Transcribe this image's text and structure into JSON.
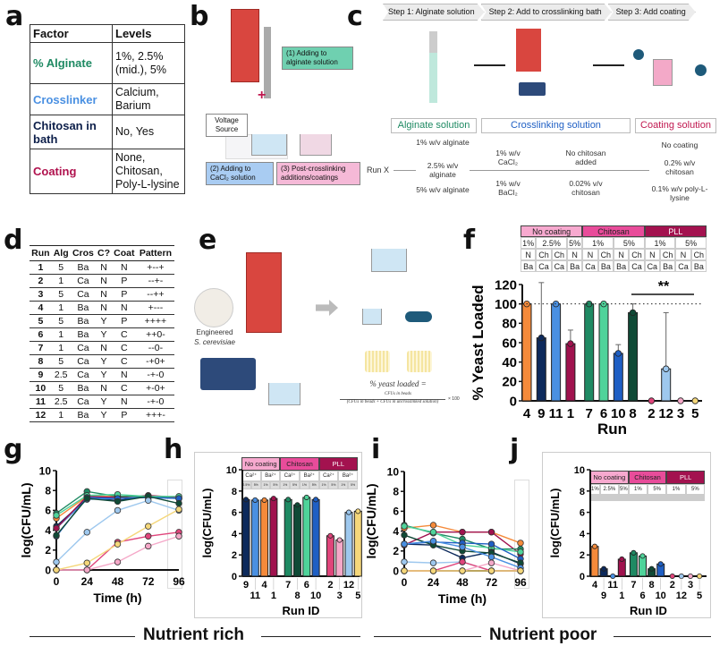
{
  "panel_labels": [
    "a",
    "b",
    "c",
    "d",
    "e",
    "f",
    "g",
    "h",
    "i",
    "j"
  ],
  "panel_a": {
    "header": [
      "Factor",
      "Levels"
    ],
    "rows": [
      {
        "factor": "% Alginate",
        "levels": "1%, 2.5% (mid.), 5%",
        "color": "#1f8a63"
      },
      {
        "factor": "Crosslinker",
        "levels": "Calcium, Barium",
        "color": "#4a90e2"
      },
      {
        "factor": "Chitosan in bath",
        "levels": "No, Yes",
        "color": "#0d1f4a"
      },
      {
        "factor": "Coating",
        "levels": "None, Chitosan, Poly-L-lysine",
        "color": "#b0124e"
      }
    ]
  },
  "panel_b": {
    "note1": "(1) Adding to alginate solution",
    "voltage": "Voltage Source",
    "note2": "(2) Adding to CaCl₂ solution",
    "note3": "(3) Post-crosslinking additions/coatings",
    "plus": "+",
    "minus": "-"
  },
  "panel_c": {
    "steps": [
      "Step 1: Alginate solution",
      "Step 2: Add to crosslinking bath",
      "Step 3: Add coating"
    ],
    "categories": [
      {
        "label": "Alginate solution",
        "color": "#1f8a63"
      },
      {
        "label": "Crosslinking solution",
        "color": "#1f5fc4"
      },
      {
        "label": "Coating solution",
        "color": "#c0174f"
      }
    ],
    "run_label": "Run X",
    "alginate": [
      "1% w/v alginate",
      "2.5% w/v alginate",
      "5% w/v alginate"
    ],
    "crosslinker": [
      "1% w/v CaCl₂",
      "1% w/v BaCl₂"
    ],
    "chitosan": [
      "No chitosan added",
      "0.02% v/v chitosan"
    ],
    "coating": [
      "No coating",
      "0.2% w/v chitosan",
      "0.1% w/v poly-L-lysine"
    ]
  },
  "panel_d": {
    "header": [
      "Run",
      "Alg",
      "Cros",
      "C?",
      "Coat",
      "Pattern"
    ],
    "rows": [
      [
        "1",
        "5",
        "Ba",
        "N",
        "N",
        "+--+"
      ],
      [
        "2",
        "1",
        "Ca",
        "N",
        "P",
        "--+-"
      ],
      [
        "3",
        "5",
        "Ca",
        "N",
        "P",
        "--++"
      ],
      [
        "4",
        "1",
        "Ba",
        "N",
        "N",
        "+---"
      ],
      [
        "5",
        "5",
        "Ba",
        "Y",
        "P",
        "++++"
      ],
      [
        "6",
        "1",
        "Ba",
        "Y",
        "C",
        "++0-"
      ],
      [
        "7",
        "1",
        "Ca",
        "N",
        "C",
        "--0-"
      ],
      [
        "8",
        "5",
        "Ca",
        "Y",
        "C",
        "-+0+"
      ],
      [
        "9",
        "2.5",
        "Ca",
        "Y",
        "N",
        "-+-0"
      ],
      [
        "10",
        "5",
        "Ba",
        "N",
        "C",
        "+-0+"
      ],
      [
        "11",
        "2.5",
        "Ca",
        "Y",
        "N",
        "-+-0"
      ],
      [
        "12",
        "1",
        "Ba",
        "Y",
        "P",
        "+++-"
      ]
    ]
  },
  "panel_e": {
    "yeast_label": "Engineered",
    "yeast_species": "S. cerevisiae",
    "formula_lhs": "% yeast loaded =",
    "formula_num": "CFUs in beads",
    "formula_den": "(CFUs in beads + CFUs in uncrosslinked solution)",
    "formula_mult": "× 100"
  },
  "panel_f_header": {
    "groups": [
      "No coating",
      "Chitosan",
      "PLL"
    ],
    "alginate": [
      "1%",
      "2.5%",
      "5%",
      "1%",
      "5%",
      "1%",
      "5%"
    ],
    "chitosan": [
      "N",
      "Ch",
      "Ch",
      "N",
      "N",
      "Ch",
      "N",
      "Ch",
      "N",
      "Ch",
      "N",
      "Ch"
    ],
    "crosslinker": [
      "Ba",
      "Ca",
      "Ca",
      "Ba",
      "Ca",
      "Ba",
      "Ba",
      "Ca",
      "Ca",
      "Ba",
      "Ca",
      "Ba"
    ]
  },
  "panel_h_header": {
    "groups": [
      "No coating",
      "Chitosan",
      "PLL"
    ],
    "crosslinker": [
      "Ca²⁺",
      "Ba²⁺",
      "Ca²⁺",
      "Ba²⁺",
      "Ca²⁺",
      "Ba²⁺"
    ],
    "alginate": [
      "2.5%",
      "5%",
      "1%",
      "5%",
      "1%",
      "5%",
      "1%",
      "5%",
      "1%",
      "5%",
      "1%",
      "5%"
    ]
  },
  "panel_j_header": {
    "groups": [
      "No coating",
      "Chitosan",
      "PLL"
    ],
    "alginate": [
      "1%",
      "2.5%",
      "5%",
      "1%",
      "5%",
      "1%",
      "5%"
    ]
  },
  "sections": [
    "Nutrient rich",
    "Nutrient poor"
  ],
  "colors": {
    "4": "#f58a3a",
    "9": "#0d2a5c",
    "11": "#4a90e2",
    "1": "#a0124e",
    "7": "#1f8a63",
    "6": "#4fd39a",
    "10": "#1f5fc4",
    "8": "#0f4a36",
    "2": "#e0457b",
    "12": "#9ec8ee",
    "3": "#f5a8c8",
    "5": "#f5d77a"
  },
  "chart_data": [
    {
      "id": "f",
      "type": "bar",
      "xlabel": "Run",
      "ylabel": "% Yeast Loaded",
      "ylim": [
        0,
        120
      ],
      "yticks": [
        "0",
        "20",
        "40",
        "60",
        "80",
        "100",
        "120"
      ],
      "categories": [
        "4",
        "9",
        "11",
        "1",
        "7",
        "6",
        "10",
        "8",
        "2",
        "12",
        "3",
        "5"
      ],
      "values": [
        100,
        65,
        100,
        59,
        100,
        100,
        49,
        91,
        0,
        33,
        0,
        0
      ],
      "sd": [
        0,
        57,
        0,
        14,
        0,
        0,
        9,
        9,
        0,
        58,
        0,
        0
      ],
      "reference_line": 100,
      "annotation": "**"
    },
    {
      "id": "g",
      "type": "line",
      "xlabel": "Time (h)",
      "ylabel": "log(CFU/mL)",
      "x": [
        0,
        24,
        48,
        72,
        96
      ],
      "xticks": [
        "0",
        "24",
        "48",
        "72",
        "96"
      ],
      "yticks": [
        "0",
        "2",
        "4",
        "6",
        "8",
        "10"
      ],
      "ylim": [
        0,
        10
      ],
      "series": [
        {
          "name": "4",
          "values": [
            5.2,
            7.4,
            7.4,
            7.4,
            7.2
          ]
        },
        {
          "name": "9",
          "values": [
            4.4,
            7.2,
            7.0,
            7.4,
            7.3
          ]
        },
        {
          "name": "11",
          "values": [
            4.2,
            7.1,
            7.2,
            7.3,
            7.2
          ]
        },
        {
          "name": "1",
          "values": [
            4.2,
            7.4,
            7.3,
            7.5,
            7.3
          ]
        },
        {
          "name": "7",
          "values": [
            5.7,
            7.9,
            7.4,
            7.4,
            7.2
          ]
        },
        {
          "name": "6",
          "values": [
            5.5,
            7.5,
            7.6,
            7.4,
            7.4
          ]
        },
        {
          "name": "10",
          "values": [
            3.4,
            7.3,
            7.2,
            7.3,
            7.2
          ]
        },
        {
          "name": "8",
          "values": [
            3.5,
            7.2,
            6.9,
            7.4,
            6.7
          ]
        },
        {
          "name": "2",
          "values": [
            0,
            0,
            2.8,
            3.4,
            3.8
          ]
        },
        {
          "name": "12",
          "values": [
            0.8,
            3.8,
            6.0,
            7.0,
            6.0
          ]
        },
        {
          "name": "3",
          "values": [
            0,
            0,
            0.8,
            2.4,
            3.4
          ]
        },
        {
          "name": "5",
          "values": [
            0,
            0.7,
            2.6,
            4.4,
            6.1
          ]
        }
      ]
    },
    {
      "id": "h",
      "type": "bar",
      "xlabel": "Run ID",
      "ylabel": "log(CFU/mL)",
      "ylim": [
        0,
        10
      ],
      "yticks": [
        "0",
        "2",
        "4",
        "6",
        "8",
        "10"
      ],
      "categories": [
        "9",
        "11",
        "4",
        "1",
        "7",
        "8",
        "6",
        "10",
        "2",
        "3",
        "12",
        "5"
      ],
      "values": [
        7.2,
        7.15,
        7.15,
        7.3,
        7.2,
        6.7,
        7.4,
        7.2,
        3.8,
        3.4,
        6.0,
        6.1
      ]
    },
    {
      "id": "i",
      "type": "line",
      "xlabel": "Time (h)",
      "ylabel": "log(CFU/mL)",
      "x": [
        0,
        24,
        48,
        72,
        96
      ],
      "xticks": [
        "0",
        "24",
        "48",
        "72",
        "96"
      ],
      "yticks": [
        "0",
        "2",
        "4",
        "6",
        "8",
        "10"
      ],
      "ylim": [
        0,
        10
      ],
      "series": [
        {
          "name": "4",
          "values": [
            4.3,
            4.6,
            3.9,
            3.9,
            2.8
          ]
        },
        {
          "name": "1",
          "values": [
            2.6,
            3.9,
            3.9,
            3.9,
            1.7
          ]
        },
        {
          "name": "7",
          "values": [
            4.6,
            3.8,
            3.2,
            2.2,
            2.2
          ]
        },
        {
          "name": "6",
          "values": [
            4.5,
            3.9,
            2.6,
            2.3,
            1.9
          ]
        },
        {
          "name": "9",
          "values": [
            2.7,
            2.6,
            1.3,
            1.9,
            0.7
          ]
        },
        {
          "name": "10",
          "values": [
            2.7,
            2.9,
            2.8,
            2.7,
            1.2
          ]
        },
        {
          "name": "8",
          "values": [
            3.6,
            2.6,
            2.0,
            1.8,
            0.8
          ]
        },
        {
          "name": "11",
          "values": [
            2.7,
            3.0,
            2.4,
            1.4,
            0.3
          ]
        },
        {
          "name": "12",
          "values": [
            0.9,
            0.8,
            0.9,
            0,
            0
          ]
        },
        {
          "name": "2",
          "values": [
            0,
            0,
            0.9,
            0,
            0
          ]
        },
        {
          "name": "3",
          "values": [
            0,
            0,
            0,
            0.8,
            0
          ]
        },
        {
          "name": "5",
          "values": [
            0,
            0,
            0,
            0,
            0
          ]
        }
      ]
    },
    {
      "id": "j",
      "type": "bar",
      "xlabel": "Run ID",
      "ylabel": "log(CFU/mL)",
      "ylim": [
        0,
        10
      ],
      "yticks": [
        "0",
        "2",
        "4",
        "6",
        "8",
        "10"
      ],
      "categories": [
        "4",
        "9",
        "11",
        "1",
        "7",
        "6",
        "8",
        "10",
        "2",
        "12",
        "3",
        "5"
      ],
      "values": [
        2.8,
        0.7,
        0,
        1.6,
        2.2,
        1.9,
        0.7,
        1.15,
        0,
        0,
        0,
        0
      ]
    }
  ]
}
